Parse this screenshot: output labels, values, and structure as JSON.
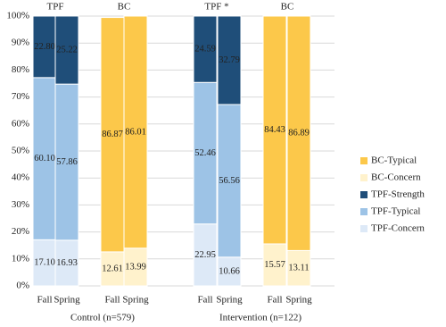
{
  "chart_data": {
    "type": "stacked_bar",
    "categories": [
      "Fall",
      "Spring",
      "Fall",
      "Spring",
      "Fall",
      "Spring",
      "Fall",
      "Spring"
    ],
    "subgroups": [
      "TPF",
      "BC",
      "TPF *",
      "BC"
    ],
    "groups": [
      "Control (n=579)",
      "Intervention (n=122)"
    ],
    "series": [
      {
        "name": "TPF-Concern",
        "color": "#dde9f7",
        "values": [
          17.1,
          16.93,
          null,
          null,
          22.95,
          10.66,
          null,
          null
        ],
        "value_labels": [
          "17.10",
          "16.93",
          null,
          null,
          "22.95",
          "10.66",
          null,
          null
        ]
      },
      {
        "name": "TPF-Typical",
        "color": "#9dc3e6",
        "values": [
          60.1,
          57.86,
          null,
          null,
          52.46,
          56.56,
          null,
          null
        ],
        "value_labels": [
          "60.10",
          "57.86",
          null,
          null,
          "52.46",
          "56.56",
          null,
          null
        ]
      },
      {
        "name": "TPF-Strength",
        "color": "#1f4e79",
        "values": [
          22.8,
          25.22,
          null,
          null,
          24.59,
          32.79,
          null,
          null
        ],
        "value_labels": [
          "22.80",
          "25.22",
          null,
          null,
          "24.59",
          "32.79",
          null,
          null
        ]
      },
      {
        "name": "BC-Concern",
        "color": "#fff2cc",
        "values": [
          null,
          null,
          12.61,
          13.99,
          null,
          null,
          15.57,
          13.11
        ],
        "value_labels": [
          null,
          null,
          "12.61",
          "13.99",
          null,
          null,
          "15.57",
          "13.11"
        ]
      },
      {
        "name": "BC-Typical",
        "color": "#fcc84a",
        "values": [
          null,
          null,
          86.87,
          86.01,
          null,
          null,
          84.43,
          86.89
        ],
        "value_labels": [
          null,
          null,
          "86.87",
          "86.01",
          null,
          null,
          "84.43",
          "86.89"
        ]
      }
    ],
    "ylim": [
      0,
      100
    ],
    "yticks": [
      {
        "value": 0,
        "label": "0%"
      },
      {
        "value": 10,
        "label": "10%"
      },
      {
        "value": 20,
        "label": "20%"
      },
      {
        "value": 30,
        "label": "30%"
      },
      {
        "value": 40,
        "label": "40%"
      },
      {
        "value": 50,
        "label": "50%"
      },
      {
        "value": 60,
        "label": "60%"
      },
      {
        "value": 70,
        "label": "70%"
      },
      {
        "value": 80,
        "label": "80%"
      },
      {
        "value": 90,
        "label": "90%"
      },
      {
        "value": 100,
        "label": "100%"
      }
    ],
    "grid": true,
    "legend": "right"
  }
}
